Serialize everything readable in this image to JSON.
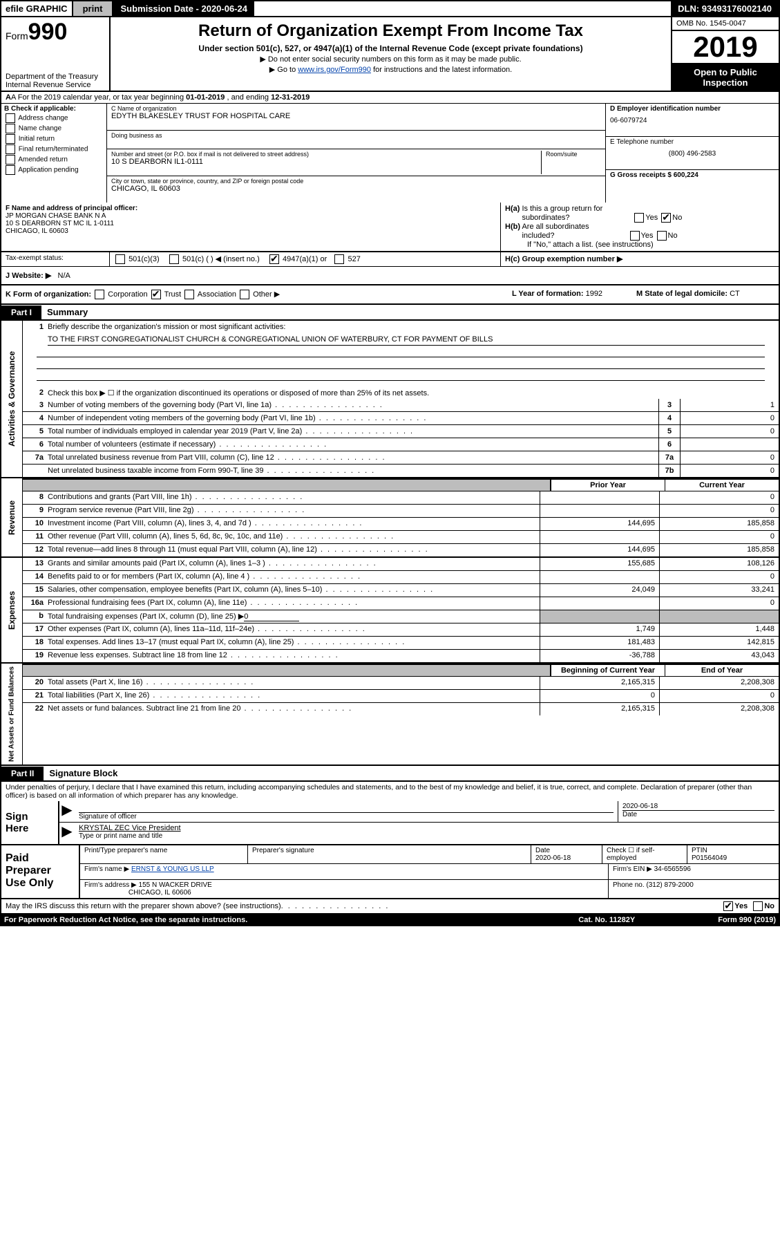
{
  "topbar": {
    "efile": "efile GRAPHIC",
    "print": "print",
    "submission": "Submission Date - 2020-06-24",
    "dln": "DLN: 93493176002140"
  },
  "header": {
    "form_label": "Form",
    "form_number": "990",
    "dept1": "Department of the Treasury",
    "dept2": "Internal Revenue Service",
    "title": "Return of Organization Exempt From Income Tax",
    "subtitle": "Under section 501(c), 527, or 4947(a)(1) of the Internal Revenue Code (except private foundations)",
    "note1": "▶ Do not enter social security numbers on this form as it may be made public.",
    "note2_pre": "▶ Go to ",
    "note2_link": "www.irs.gov/Form990",
    "note2_post": " for instructions and the latest information.",
    "omb": "OMB No. 1545-0047",
    "year": "2019",
    "open_public": "Open to Public Inspection"
  },
  "rowA": {
    "prefix": "A For the 2019 calendar year, or tax year beginning ",
    "begin": "01-01-2019",
    "mid": " , and ending ",
    "end": "12-31-2019"
  },
  "colB": {
    "label": "B Check if applicable:",
    "opts": [
      "Address change",
      "Name change",
      "Initial return",
      "Final return/terminated",
      "Amended return",
      "Application pending"
    ]
  },
  "colC": {
    "c_label": "C Name of organization",
    "c_val": "EDYTH BLAKESLEY TRUST FOR HOSPITAL CARE",
    "dba_label": "Doing business as",
    "addr_label": "Number and street (or P.O. box if mail is not delivered to street address)",
    "room_label": "Room/suite",
    "addr_val": "10 S DEARBORN IL1-0111",
    "city_label": "City or town, state or province, country, and ZIP or foreign postal code",
    "city_val": "CHICAGO, IL  60603"
  },
  "colD": {
    "d_label": "D Employer identification number",
    "d_val": "06-6079724",
    "e_label": "E Telephone number",
    "e_val": "(800) 496-2583",
    "g_label": "G Gross receipts $",
    "g_val": "600,224"
  },
  "rowF": {
    "label": "F Name and address of principal officer:",
    "name": "JP MORGAN CHASE BANK N A",
    "addr1": "10 S DEARBORN ST MC IL 1-0111",
    "addr2": "CHICAGO, IL  60603"
  },
  "rowH": {
    "ha_label": "H(a)  Is this a group return for subordinates?",
    "hb_label": "H(b)  Are all subordinates included?",
    "hb_note": "If \"No,\" attach a list. (see instructions)",
    "hc_label": "H(c)  Group exemption number ▶",
    "yes": "Yes",
    "no": "No"
  },
  "rowI": {
    "tax_label": "Tax-exempt status:",
    "opts": [
      "501(c)(3)",
      "501(c) (  ) ◀ (insert no.)",
      "4947(a)(1) or",
      "527"
    ]
  },
  "rowJ": {
    "label": "J Website: ▶",
    "val": "N/A"
  },
  "rowK": {
    "label": "K Form of organization:",
    "opts": [
      "Corporation",
      "Trust",
      "Association",
      "Other ▶"
    ],
    "l_label": "L Year of formation:",
    "l_val": "1992",
    "m_label": "M State of legal domicile:",
    "m_val": "CT"
  },
  "partI": {
    "tab": "Part I",
    "title": "Summary"
  },
  "gov": {
    "label": "Activities & Governance",
    "q1_label": "Briefly describe the organization's mission or most significant activities:",
    "q1_val": "TO THE FIRST CONGREGATIONALIST CHURCH & CONGREGATIONAL UNION OF WATERBURY, CT FOR PAYMENT OF BILLS",
    "q2": "Check this box ▶ ☐  if the organization discontinued its operations or disposed of more than 25% of its net assets.",
    "rows": [
      {
        "n": "3",
        "d": "Number of voting members of the governing body (Part VI, line 1a)",
        "box": "3",
        "v": "1"
      },
      {
        "n": "4",
        "d": "Number of independent voting members of the governing body (Part VI, line 1b)",
        "box": "4",
        "v": "0"
      },
      {
        "n": "5",
        "d": "Total number of individuals employed in calendar year 2019 (Part V, line 2a)",
        "box": "5",
        "v": "0"
      },
      {
        "n": "6",
        "d": "Total number of volunteers (estimate if necessary)",
        "box": "6",
        "v": ""
      },
      {
        "n": "7a",
        "d": "Total unrelated business revenue from Part VIII, column (C), line 12",
        "box": "7a",
        "v": "0"
      },
      {
        "n": "",
        "d": "Net unrelated business taxable income from Form 990-T, line 39",
        "box": "7b",
        "v": "0"
      }
    ]
  },
  "cols": {
    "prior": "Prior Year",
    "current": "Current Year",
    "boy": "Beginning of Current Year",
    "eoy": "End of Year"
  },
  "rev": {
    "label": "Revenue",
    "rows": [
      {
        "n": "8",
        "d": "Contributions and grants (Part VIII, line 1h)",
        "p": "",
        "c": "0"
      },
      {
        "n": "9",
        "d": "Program service revenue (Part VIII, line 2g)",
        "p": "",
        "c": "0"
      },
      {
        "n": "10",
        "d": "Investment income (Part VIII, column (A), lines 3, 4, and 7d )",
        "p": "144,695",
        "c": "185,858"
      },
      {
        "n": "11",
        "d": "Other revenue (Part VIII, column (A), lines 5, 6d, 8c, 9c, 10c, and 11e)",
        "p": "",
        "c": "0"
      },
      {
        "n": "12",
        "d": "Total revenue—add lines 8 through 11 (must equal Part VIII, column (A), line 12)",
        "p": "144,695",
        "c": "185,858"
      }
    ]
  },
  "exp": {
    "label": "Expenses",
    "rows": [
      {
        "n": "13",
        "d": "Grants and similar amounts paid (Part IX, column (A), lines 1–3 )",
        "p": "155,685",
        "c": "108,126"
      },
      {
        "n": "14",
        "d": "Benefits paid to or for members (Part IX, column (A), line 4 )",
        "p": "",
        "c": "0"
      },
      {
        "n": "15",
        "d": "Salaries, other compensation, employee benefits (Part IX, column (A), lines 5–10)",
        "p": "24,049",
        "c": "33,241"
      },
      {
        "n": "16a",
        "d": "Professional fundraising fees (Part IX, column (A), line 11e)",
        "p": "",
        "c": "0"
      },
      {
        "n": "b",
        "d": "Total fundraising expenses (Part IX, column (D), line 25) ▶",
        "p": "shaded",
        "c": "shaded",
        "sub": "0"
      },
      {
        "n": "17",
        "d": "Other expenses (Part IX, column (A), lines 11a–11d, 11f–24e)",
        "p": "1,749",
        "c": "1,448"
      },
      {
        "n": "18",
        "d": "Total expenses. Add lines 13–17 (must equal Part IX, column (A), line 25)",
        "p": "181,483",
        "c": "142,815"
      },
      {
        "n": "19",
        "d": "Revenue less expenses. Subtract line 18 from line 12",
        "p": "-36,788",
        "c": "43,043"
      }
    ]
  },
  "net": {
    "label": "Net Assets or Fund Balances",
    "rows": [
      {
        "n": "20",
        "d": "Total assets (Part X, line 16)",
        "p": "2,165,315",
        "c": "2,208,308"
      },
      {
        "n": "21",
        "d": "Total liabilities (Part X, line 26)",
        "p": "0",
        "c": "0"
      },
      {
        "n": "22",
        "d": "Net assets or fund balances. Subtract line 21 from line 20",
        "p": "2,165,315",
        "c": "2,208,308"
      }
    ]
  },
  "partII": {
    "tab": "Part II",
    "title": "Signature Block"
  },
  "perjury": "Under penalties of perjury, I declare that I have examined this return, including accompanying schedules and statements, and to the best of my knowledge and belief, it is true, correct, and complete. Declaration of preparer (other than officer) is based on all information of which preparer has any knowledge.",
  "sign": {
    "here": "Sign Here",
    "sig_label": "Signature of officer",
    "date_label": "Date",
    "date_val": "2020-06-18",
    "name_val": "KRYSTAL ZEC  Vice President",
    "name_label": "Type or print name and title"
  },
  "prep": {
    "label": "Paid Preparer Use Only",
    "r1": {
      "c1": "Print/Type preparer's name",
      "c2": "Preparer's signature",
      "c3_l": "Date",
      "c3_v": "2020-06-18",
      "c4_l": "Check ☐ if self-employed",
      "c5_l": "PTIN",
      "c5_v": "P01564049"
    },
    "r2": {
      "l": "Firm's name    ▶",
      "v": "ERNST & YOUNG US LLP",
      "ein_l": "Firm's EIN ▶",
      "ein_v": "34-6565596"
    },
    "r3": {
      "l": "Firm's address ▶",
      "v1": "155 N WACKER DRIVE",
      "v2": "CHICAGO, IL  60606",
      "ph_l": "Phone no.",
      "ph_v": "(312) 879-2000"
    }
  },
  "discuss": {
    "q": "May the IRS discuss this return with the preparer shown above? (see instructions)",
    "yes": "Yes",
    "no": "No"
  },
  "footer": {
    "left": "For Paperwork Reduction Act Notice, see the separate instructions.",
    "mid": "Cat. No. 11282Y",
    "right": "Form 990 (2019)"
  }
}
